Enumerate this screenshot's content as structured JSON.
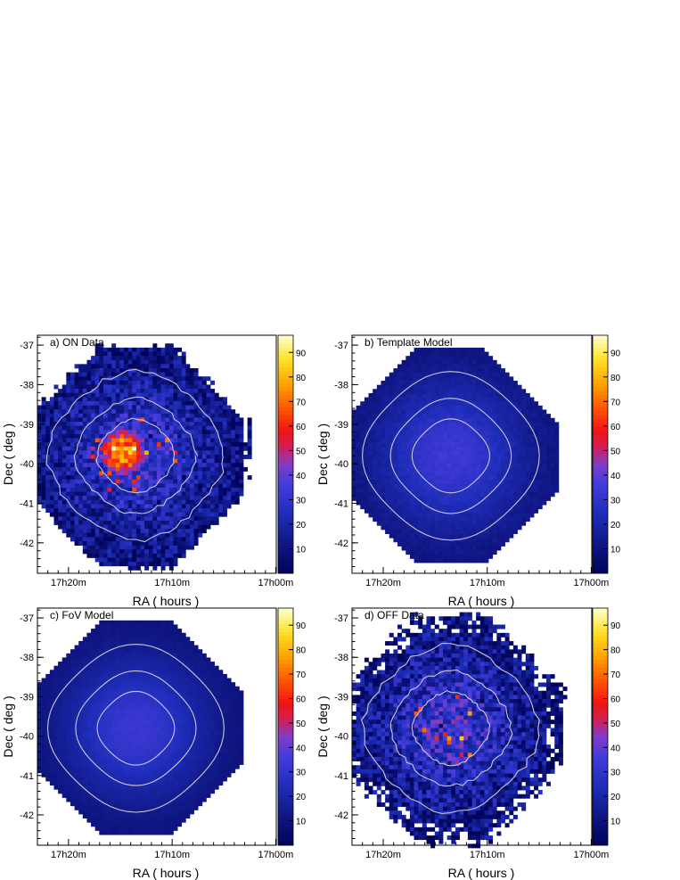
{
  "chart_data": [
    {
      "type": "heatmap",
      "panel_label": "a)  ON Data",
      "xlabel": "RA  ( hours )",
      "ylabel": "Dec  ( deg )",
      "x_ticks": [
        "17h20m",
        "17h10m",
        "17h00m"
      ],
      "y_ticks": [
        "-37",
        "-38",
        "-39",
        "-40",
        "-41",
        "-42"
      ],
      "colorbar_ticks": [
        10,
        20,
        30,
        40,
        50,
        60,
        70,
        80,
        90
      ],
      "zlim": [
        0,
        97
      ],
      "grid": false,
      "contours": true,
      "model": {
        "center_ra_min": 1033.5,
        "center_dec": -39.8,
        "background_center": 32,
        "background_edge": 8,
        "hotspot": {
          "ra_min": 1034.8,
          "dec": -39.7,
          "radius_deg": 0.5,
          "peak": 72
        },
        "noise": 14,
        "extent_deg": 2.75
      }
    },
    {
      "type": "heatmap",
      "panel_label": "b)  Template Model",
      "xlabel": "RA  ( hours )",
      "ylabel": "Dec  ( deg )",
      "x_ticks": [
        "17h20m",
        "17h10m",
        "17h00m"
      ],
      "y_ticks": [
        "-37",
        "-38",
        "-39",
        "-40",
        "-41",
        "-42"
      ],
      "colorbar_ticks": [
        10,
        20,
        30,
        40,
        50,
        60,
        70,
        80,
        90
      ],
      "zlim": [
        0,
        97
      ],
      "grid": false,
      "contours": true,
      "model": {
        "center_ra_min": 1033.5,
        "center_dec": -39.8,
        "background_center": 34,
        "background_edge": 9,
        "hotspot": null,
        "noise": 2,
        "extent_deg": 2.7
      }
    },
    {
      "type": "heatmap",
      "panel_label": "c)  FoV Model",
      "xlabel": "RA  ( hours )",
      "ylabel": "Dec  ( deg )",
      "x_ticks": [
        "17h20m",
        "17h10m",
        "17h00m"
      ],
      "y_ticks": [
        "-37",
        "-38",
        "-39",
        "-40",
        "-41",
        "-42"
      ],
      "colorbar_ticks": [
        10,
        20,
        30,
        40,
        50,
        60,
        70,
        80,
        90
      ],
      "zlim": [
        0,
        97
      ],
      "grid": false,
      "contours": true,
      "model": {
        "center_ra_min": 1033.5,
        "center_dec": -39.8,
        "background_center": 33,
        "background_edge": 8,
        "hotspot": null,
        "noise": 1,
        "extent_deg": 2.75
      }
    },
    {
      "type": "heatmap",
      "panel_label": "d)  OFF Data",
      "xlabel": "RA  ( hours )",
      "ylabel": "Dec  ( deg )",
      "x_ticks": [
        "17h20m",
        "17h10m",
        "17h00m"
      ],
      "y_ticks": [
        "-37",
        "-38",
        "-39",
        "-40",
        "-41",
        "-42"
      ],
      "colorbar_ticks": [
        10,
        20,
        30,
        40,
        50,
        60,
        70,
        80,
        90
      ],
      "zlim": [
        0,
        97
      ],
      "grid": false,
      "contours": true,
      "model": {
        "center_ra_min": 1033.5,
        "center_dec": -39.8,
        "background_center": 33,
        "background_edge": 7,
        "hotspot": null,
        "noise": 16,
        "extent_deg": 2.85,
        "sparse_edge": true
      }
    }
  ]
}
